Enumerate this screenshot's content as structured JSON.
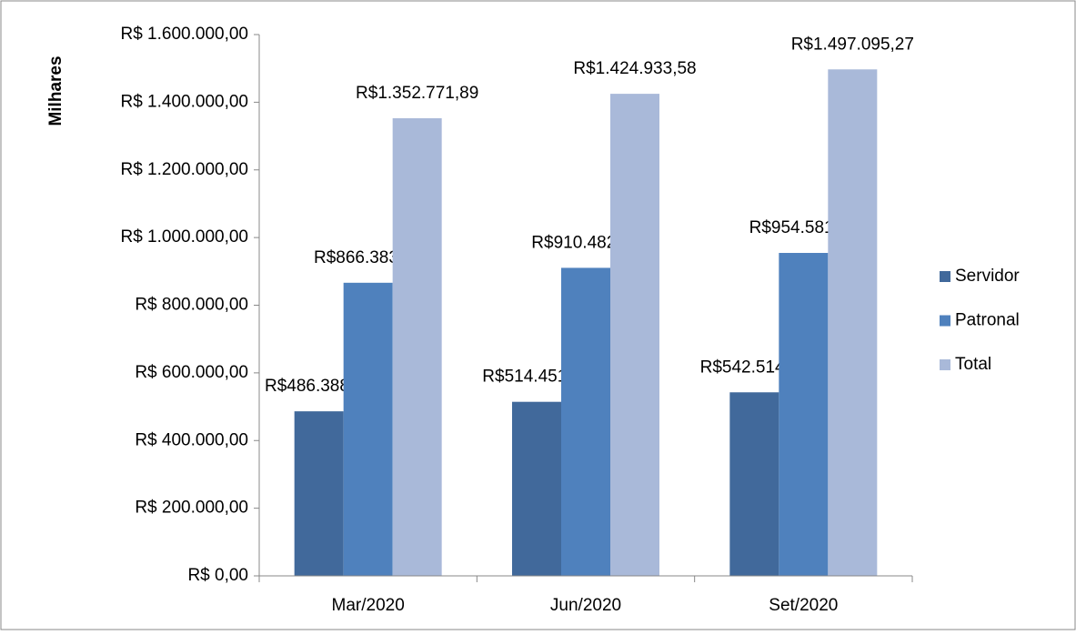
{
  "chart_data": {
    "type": "bar",
    "y_label": "Milhares",
    "categories": [
      "Mar/2020",
      "Jun/2020",
      "Set/2020"
    ],
    "series": [
      {
        "name": "Servidor",
        "color": "#41699b",
        "values": [
          486388.25,
          514451.13,
          542514.0
        ],
        "value_labels": [
          "R$486.388,25",
          "R$514.451,13",
          "R$542.514,00"
        ]
      },
      {
        "name": "Patronal",
        "color": "#4f81bd",
        "values": [
          866383.64,
          910482.45,
          954581.26
        ],
        "value_labels": [
          "R$866.383,64",
          "R$910.482,45",
          "R$954.581,26"
        ]
      },
      {
        "name": "Total",
        "color": "#a9b9d9",
        "values": [
          1352771.89,
          1424933.58,
          1497095.27
        ],
        "value_labels": [
          "R$1.352.771,89",
          "R$1.424.933,58",
          "R$1.497.095,27"
        ]
      }
    ],
    "ylim": [
      0,
      1600000
    ],
    "yticks": [
      {
        "value": 0,
        "label": "R$ 0,00"
      },
      {
        "value": 200000,
        "label": "R$ 200.000,00"
      },
      {
        "value": 400000,
        "label": "R$ 400.000,00"
      },
      {
        "value": 600000,
        "label": "R$ 600.000,00"
      },
      {
        "value": 800000,
        "label": "R$ 800.000,00"
      },
      {
        "value": 1000000,
        "label": "R$ 1.000.000,00"
      },
      {
        "value": 1200000,
        "label": "R$ 1.200.000,00"
      },
      {
        "value": 1400000,
        "label": "R$ 1.400.000,00"
      },
      {
        "value": 1600000,
        "label": "R$ 1.600.000,00"
      }
    ],
    "grid": false,
    "legend": "right"
  }
}
